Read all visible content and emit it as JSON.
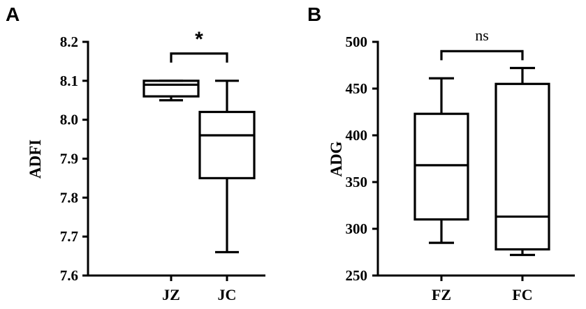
{
  "chart_data": [
    {
      "type": "box",
      "panel_label": "A",
      "ylabel": "ADFI",
      "ylim": [
        7.6,
        8.2
      ],
      "yticks": [
        7.6,
        7.7,
        7.8,
        7.9,
        8.0,
        8.1,
        8.2
      ],
      "ytick_labels": [
        "7.6",
        "7.7",
        "7.8",
        "7.9",
        "8.0",
        "8.1",
        "8.2"
      ],
      "categories": [
        "JZ",
        "JC"
      ],
      "boxes": [
        {
          "category": "JZ",
          "min": 8.05,
          "q1": 8.06,
          "median": 8.09,
          "q3": 8.1,
          "max": 8.1
        },
        {
          "category": "JC",
          "min": 7.66,
          "q1": 7.85,
          "median": 7.96,
          "q3": 8.02,
          "max": 8.1
        }
      ],
      "significance": {
        "between": [
          "JZ",
          "JC"
        ],
        "label": "*",
        "y": 8.17
      }
    },
    {
      "type": "box",
      "panel_label": "B",
      "ylabel": "ADG",
      "ylim": [
        250,
        500
      ],
      "yticks": [
        250,
        300,
        350,
        400,
        450,
        500
      ],
      "ytick_labels": [
        "250",
        "300",
        "350",
        "400",
        "450",
        "500"
      ],
      "categories": [
        "FZ",
        "FC"
      ],
      "boxes": [
        {
          "category": "FZ",
          "min": 285,
          "q1": 310,
          "median": 368,
          "q3": 423,
          "max": 461
        },
        {
          "category": "FC",
          "min": 272,
          "q1": 278,
          "median": 313,
          "q3": 455,
          "max": 472
        }
      ],
      "significance": {
        "between": [
          "FZ",
          "FC"
        ],
        "label": "ns",
        "y": 490
      }
    }
  ]
}
